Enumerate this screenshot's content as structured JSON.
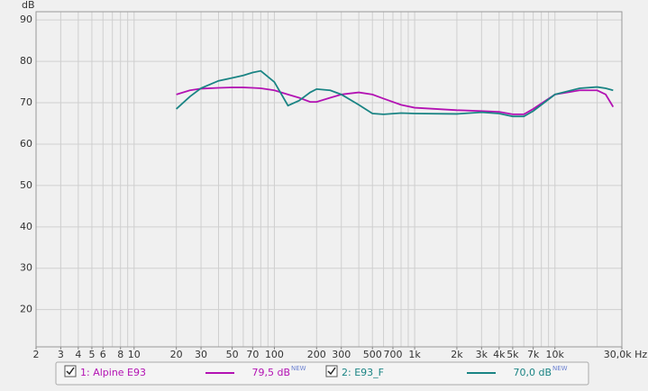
{
  "chart_data": {
    "type": "line",
    "y_label": "dB",
    "x": [
      20,
      25,
      30,
      40,
      50,
      60,
      70,
      80,
      100,
      125,
      150,
      180,
      200,
      250,
      300,
      400,
      500,
      600,
      800,
      1000,
      2000,
      3000,
      4000,
      5000,
      6000,
      7000,
      10000,
      15000,
      20000,
      23000,
      26000
    ],
    "series": [
      {
        "name": "1: Alpine E93",
        "color": "#b312b3",
        "level": "79,5 dB",
        "badge": "NEW",
        "values": [
          72,
          73,
          73.4,
          73.6,
          73.7,
          73.7,
          73.6,
          73.5,
          73,
          72,
          71.2,
          70.2,
          70.2,
          71.2,
          72,
          72.5,
          72,
          71,
          69.5,
          68.8,
          68.2,
          68,
          67.8,
          67.2,
          67.2,
          68.5,
          72,
          73,
          73,
          72,
          69
        ]
      },
      {
        "name": "2: E93_F",
        "color": "#1a8484",
        "level": "70,0 dB",
        "badge": "NEW",
        "values": [
          68.5,
          71.5,
          73.5,
          75.3,
          76,
          76.6,
          77.3,
          77.7,
          75,
          69.3,
          70.5,
          72.5,
          73.3,
          73,
          72,
          69.5,
          67.4,
          67.2,
          67.5,
          67.4,
          67.3,
          67.7,
          67.4,
          66.7,
          66.7,
          68,
          72,
          73.5,
          73.8,
          73.5,
          73
        ]
      }
    ],
    "xlog": true,
    "xlim": [
      2,
      30000
    ],
    "ylim": [
      11,
      92
    ],
    "xticks": [
      2,
      3,
      4,
      5,
      6,
      8,
      10,
      20,
      30,
      50,
      70,
      100,
      200,
      300,
      500,
      700,
      {
        "value": 1000,
        "label": "1k"
      },
      {
        "value": 2000,
        "label": "2k"
      },
      {
        "value": 3000,
        "label": "3k"
      },
      {
        "value": 4000,
        "label": "4k"
      },
      {
        "value": 5000,
        "label": "5k"
      },
      {
        "value": 7000,
        "label": "7k"
      },
      {
        "value": 10000,
        "label": "10k"
      },
      {
        "value": 30000,
        "label": "30,0k Hz"
      }
    ],
    "xgrid": [
      3,
      4,
      5,
      6,
      7,
      8,
      9,
      10,
      20,
      30,
      40,
      50,
      60,
      70,
      80,
      90,
      100,
      200,
      300,
      400,
      500,
      600,
      700,
      800,
      900,
      1000,
      2000,
      3000,
      4000,
      5000,
      6000,
      7000,
      8000,
      9000,
      10000,
      20000
    ],
    "yticks": [
      20,
      30,
      40,
      50,
      60,
      70,
      80,
      90
    ],
    "grid": true
  }
}
